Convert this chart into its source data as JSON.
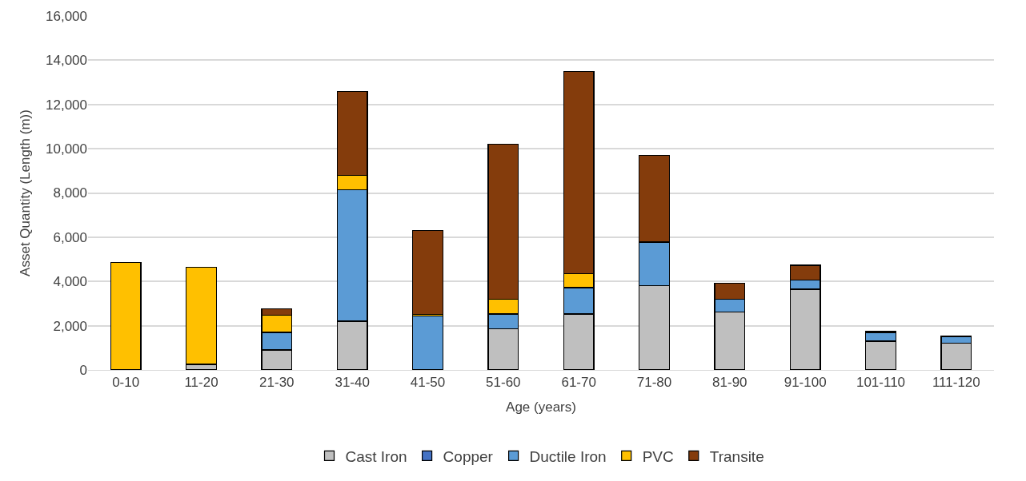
{
  "chart_data": {
    "type": "bar",
    "stacked": true,
    "xlabel": "Age (years)",
    "ylabel": "Asset Quantity (Length (m))",
    "categories": [
      "0-10",
      "11-20",
      "21-30",
      "31-40",
      "41-50",
      "51-60",
      "61-70",
      "71-80",
      "81-90",
      "91-100",
      "101-110",
      "111-120"
    ],
    "series": [
      {
        "name": "Cast Iron",
        "color": "#bfbfbf",
        "values": [
          null,
          250,
          900,
          2200,
          null,
          1850,
          2530,
          3800,
          2620,
          3650,
          1300,
          1200
        ]
      },
      {
        "name": "Copper",
        "color": "#4472c4",
        "values": [
          null,
          null,
          null,
          null,
          null,
          null,
          null,
          null,
          null,
          null,
          null,
          null
        ]
      },
      {
        "name": "Ductile Iron",
        "color": "#5b9bd5",
        "values": [
          null,
          null,
          800,
          5950,
          2450,
          680,
          1190,
          1980,
          580,
          400,
          400,
          320
        ]
      },
      {
        "name": "PVC",
        "color": "#ffc000",
        "values": [
          4850,
          4400,
          780,
          650,
          50,
          670,
          630,
          null,
          null,
          null,
          null,
          null
        ]
      },
      {
        "name": "Transite",
        "color": "#843c0c",
        "values": [
          null,
          null,
          270,
          3780,
          3800,
          7000,
          9150,
          3920,
          730,
          680,
          50,
          null
        ]
      }
    ],
    "ylim": [
      0,
      16000
    ],
    "yticks": [
      {
        "value": 0,
        "label": "0"
      },
      {
        "value": 2000,
        "label": "2,000"
      },
      {
        "value": 4000,
        "label": "4,000"
      },
      {
        "value": 6000,
        "label": "6,000"
      },
      {
        "value": 8000,
        "label": "8,000"
      },
      {
        "value": 10000,
        "label": "10,000"
      },
      {
        "value": 12000,
        "label": "12,000"
      },
      {
        "value": 14000,
        "label": "14,000"
      },
      {
        "value": 16000,
        "label": "16,000"
      }
    ],
    "grid": "y",
    "legend": "bottom"
  }
}
